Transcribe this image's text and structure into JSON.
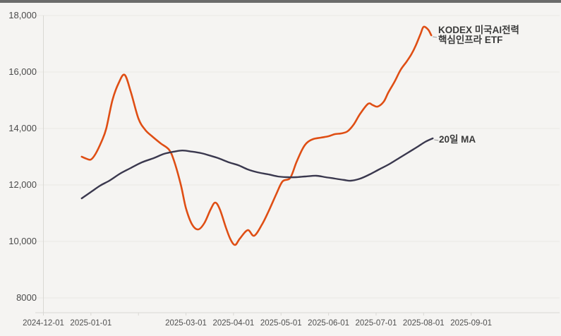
{
  "page": {
    "background_color": "#f5f4f2",
    "top_bar_color": "#6b6b6b",
    "grid_color": "#e9e8e4",
    "axis_color": "#d9d8d4",
    "tick_text_color": "#4f4f4f",
    "annotation_text_color": "#3a3a3a"
  },
  "chart_data": {
    "type": "line",
    "title": "",
    "xlabel": "",
    "ylabel": "",
    "grid": "horizontal-only",
    "legend_position": "inline-annotations-right",
    "x_axis": {
      "range": [
        "2024-12-01",
        "2025-09-01"
      ],
      "ticks": [
        {
          "date": "2024-12-01",
          "label": "2024-12-01"
        },
        {
          "date": "2025-01-01",
          "label": "2025-01-01"
        },
        {
          "date": "2025-02-01",
          "label": ""
        },
        {
          "date": "2025-03-01",
          "label": "2025-03-01"
        },
        {
          "date": "2025-04-01",
          "label": "2025-04-01"
        },
        {
          "date": "2025-05-01",
          "label": "2025-05-01"
        },
        {
          "date": "2025-06-01",
          "label": "2025-06-01"
        },
        {
          "date": "2025-07-01",
          "label": "2025-07-01"
        },
        {
          "date": "2025-08-01",
          "label": "2025-08-01"
        },
        {
          "date": "2025-09-01",
          "label": "2025-09-01"
        }
      ]
    },
    "y_axis": {
      "range_shown": [
        7475,
        18550
      ],
      "ticks": [
        {
          "value": 18000,
          "label": "18,000"
        },
        {
          "value": 16000,
          "label": "16,000"
        },
        {
          "value": 14000,
          "label": "14,000"
        },
        {
          "value": 12000,
          "label": "12,000"
        },
        {
          "value": 10000,
          "label": "10,000"
        },
        {
          "value": 8000,
          "label": "8000"
        }
      ]
    },
    "series": [
      {
        "name": "KODEX 미국AI전력핵심인프라 ETF",
        "annotation_lines": [
          "KODEX 미국AI전력",
          "핵심인프라 ETF"
        ],
        "color": "#df4e14",
        "stroke_width": 2.6,
        "points": [
          [
            "2024-12-26",
            13000
          ],
          [
            "2024-12-29",
            12930
          ],
          [
            "2025-01-01",
            12900
          ],
          [
            "2025-01-04",
            13100
          ],
          [
            "2025-01-08",
            13550
          ],
          [
            "2025-01-11",
            14000
          ],
          [
            "2025-01-15",
            15000
          ],
          [
            "2025-01-19",
            15600
          ],
          [
            "2025-01-23",
            15900
          ],
          [
            "2025-01-27",
            15300
          ],
          [
            "2025-02-01",
            14350
          ],
          [
            "2025-02-05",
            13950
          ],
          [
            "2025-02-09",
            13725
          ],
          [
            "2025-02-14",
            13475
          ],
          [
            "2025-02-19",
            13250
          ],
          [
            "2025-02-22",
            12850
          ],
          [
            "2025-02-26",
            12000
          ],
          [
            "2025-03-01",
            11175
          ],
          [
            "2025-03-05",
            10600
          ],
          [
            "2025-03-09",
            10425
          ],
          [
            "2025-03-13",
            10650
          ],
          [
            "2025-03-17",
            11125
          ],
          [
            "2025-03-20",
            11375
          ],
          [
            "2025-03-23",
            11150
          ],
          [
            "2025-03-27",
            10500
          ],
          [
            "2025-03-30",
            10075
          ],
          [
            "2025-04-02",
            9875
          ],
          [
            "2025-04-05",
            10100
          ],
          [
            "2025-04-10",
            10400
          ],
          [
            "2025-04-14",
            10200
          ],
          [
            "2025-04-19",
            10600
          ],
          [
            "2025-04-23",
            11050
          ],
          [
            "2025-04-28",
            11675
          ],
          [
            "2025-05-02",
            12125
          ],
          [
            "2025-05-07",
            12250
          ],
          [
            "2025-05-11",
            12800
          ],
          [
            "2025-05-15",
            13275
          ],
          [
            "2025-05-18",
            13500
          ],
          [
            "2025-05-22",
            13625
          ],
          [
            "2025-05-27",
            13675
          ],
          [
            "2025-06-01",
            13725
          ],
          [
            "2025-06-05",
            13800
          ],
          [
            "2025-06-09",
            13825
          ],
          [
            "2025-06-13",
            13900
          ],
          [
            "2025-06-17",
            14150
          ],
          [
            "2025-06-21",
            14525
          ],
          [
            "2025-06-26",
            14875
          ],
          [
            "2025-06-29",
            14825
          ],
          [
            "2025-07-02",
            14775
          ],
          [
            "2025-07-06",
            14950
          ],
          [
            "2025-07-09",
            15275
          ],
          [
            "2025-07-13",
            15650
          ],
          [
            "2025-07-17",
            16075
          ],
          [
            "2025-07-21",
            16375
          ],
          [
            "2025-07-24",
            16625
          ],
          [
            "2025-07-27",
            16950
          ],
          [
            "2025-07-30",
            17350
          ],
          [
            "2025-08-01",
            17600
          ],
          [
            "2025-08-04",
            17500
          ],
          [
            "2025-08-06",
            17300
          ]
        ]
      },
      {
        "name": "20일 MA",
        "annotation_lines": [
          "20일 MA"
        ],
        "color": "#3a384e",
        "stroke_width": 2.4,
        "points": [
          [
            "2024-12-26",
            11525
          ],
          [
            "2025-01-01",
            11750
          ],
          [
            "2025-01-07",
            11975
          ],
          [
            "2025-01-13",
            12150
          ],
          [
            "2025-01-20",
            12400
          ],
          [
            "2025-01-27",
            12600
          ],
          [
            "2025-02-03",
            12800
          ],
          [
            "2025-02-10",
            12950
          ],
          [
            "2025-02-16",
            13100
          ],
          [
            "2025-02-22",
            13180
          ],
          [
            "2025-02-27",
            13220
          ],
          [
            "2025-03-05",
            13180
          ],
          [
            "2025-03-11",
            13125
          ],
          [
            "2025-03-16",
            13050
          ],
          [
            "2025-03-22",
            12950
          ],
          [
            "2025-03-29",
            12800
          ],
          [
            "2025-04-04",
            12700
          ],
          [
            "2025-04-10",
            12550
          ],
          [
            "2025-04-16",
            12450
          ],
          [
            "2025-04-23",
            12375
          ],
          [
            "2025-04-29",
            12300
          ],
          [
            "2025-05-05",
            12275
          ],
          [
            "2025-05-11",
            12275
          ],
          [
            "2025-05-17",
            12300
          ],
          [
            "2025-05-24",
            12325
          ],
          [
            "2025-05-30",
            12275
          ],
          [
            "2025-06-05",
            12225
          ],
          [
            "2025-06-11",
            12175
          ],
          [
            "2025-06-15",
            12150
          ],
          [
            "2025-06-21",
            12225
          ],
          [
            "2025-06-27",
            12375
          ],
          [
            "2025-07-03",
            12550
          ],
          [
            "2025-07-10",
            12750
          ],
          [
            "2025-07-16",
            12950
          ],
          [
            "2025-07-22",
            13150
          ],
          [
            "2025-07-28",
            13350
          ],
          [
            "2025-08-02",
            13525
          ],
          [
            "2025-08-07",
            13650
          ]
        ]
      }
    ]
  }
}
